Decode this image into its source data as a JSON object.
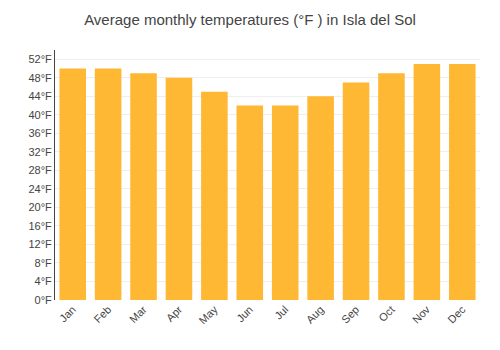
{
  "chart_data": {
    "type": "bar",
    "title": "Average monthly temperatures (°F ) in Isla del Sol",
    "categories": [
      "Jan",
      "Feb",
      "Mar",
      "Apr",
      "May",
      "Jun",
      "Jul",
      "Aug",
      "Sep",
      "Oct",
      "Nov",
      "Dec"
    ],
    "values": [
      50,
      50,
      49,
      48,
      45,
      42,
      42,
      44,
      47,
      49,
      51,
      51
    ],
    "color": "#FFB833",
    "ylim": [
      0,
      54
    ],
    "yticks": [
      {
        "value": 0,
        "label": "0°F"
      },
      {
        "value": 4,
        "label": "4°F"
      },
      {
        "value": 8,
        "label": "8°F"
      },
      {
        "value": 12,
        "label": "12°F"
      },
      {
        "value": 16,
        "label": "16°F"
      },
      {
        "value": 20,
        "label": "20°F"
      },
      {
        "value": 24,
        "label": "24°F"
      },
      {
        "value": 28,
        "label": "28°F"
      },
      {
        "value": 32,
        "label": "32°F"
      },
      {
        "value": 36,
        "label": "36°F"
      },
      {
        "value": 40,
        "label": "40°F"
      },
      {
        "value": 44,
        "label": "44°F"
      },
      {
        "value": 48,
        "label": "48°F"
      },
      {
        "value": 52,
        "label": "52°F"
      }
    ],
    "grid": true
  }
}
